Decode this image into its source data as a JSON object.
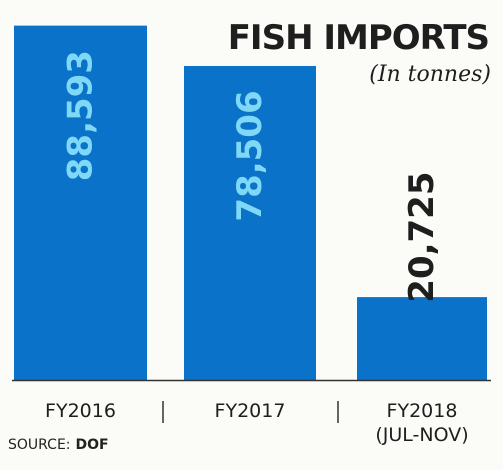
{
  "chart_data": {
    "type": "bar",
    "title": "FISH IMPORTS",
    "subtitle": "(In tonnes)",
    "categories": [
      "FY2016",
      "FY2017",
      "FY2018 (JUL-NOV)"
    ],
    "category_lines": [
      [
        "FY2016"
      ],
      [
        "FY2017"
      ],
      [
        "FY2018",
        "(JUL-NOV)"
      ]
    ],
    "values": [
      88593,
      78506,
      20725
    ],
    "value_labels": [
      "88,593",
      "78,506",
      "20,725"
    ],
    "ylim": [
      0,
      89500
    ],
    "grid": false,
    "legend": "none",
    "bar_color": "#0b72c9",
    "inside_label_color": "#7fd8f5",
    "outside_label_color": "#1e1e1e",
    "axis_color": "#333333"
  },
  "source": {
    "label": "SOURCE:",
    "value": "DOF"
  }
}
